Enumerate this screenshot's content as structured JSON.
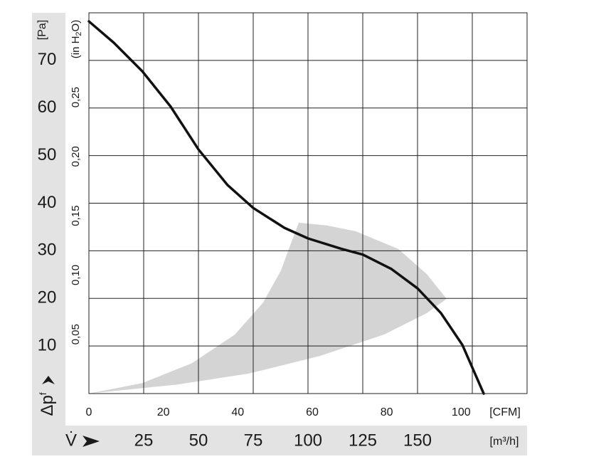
{
  "chart_data": {
    "type": "line",
    "x": [
      0,
      11.4,
      24.4,
      37.3,
      50,
      63.3,
      75,
      89.3,
      100,
      115.3,
      125,
      138,
      150,
      160.7,
      170.5,
      180.2
    ],
    "values": [
      78.2,
      73.7,
      67.7,
      60.3,
      51.3,
      43.8,
      39.0,
      34.8,
      32.6,
      30.4,
      29.2,
      26.2,
      22.1,
      16.9,
      10.2,
      0
    ],
    "color": "#111111",
    "region": {
      "color": "#d4d4d4",
      "x": [
        0,
        40.6,
        73,
        105.5,
        134.7,
        154.2,
        163.3,
        154.2,
        141.2,
        121.8,
        108.8,
        95.8,
        92.5,
        87.7,
        79.5,
        66.6,
        47.1,
        24.4
      ],
      "y": [
        0,
        1.9,
        4.2,
        7.9,
        12.4,
        16.9,
        19.9,
        25.1,
        30.4,
        34.1,
        35.3,
        35.9,
        31.9,
        25.9,
        19.1,
        12.4,
        6.4,
        2.2
      ]
    },
    "xlim": [
      0,
      200
    ],
    "xticks": [
      25,
      50,
      75,
      100,
      125,
      150
    ],
    "xgrid": [
      25,
      50,
      75,
      100,
      125,
      150,
      175
    ],
    "x_label": "V̇",
    "x_unit": "[m³/h]",
    "x2lim": [
      0,
      117.72
    ],
    "x2ticks": [
      0,
      20,
      40,
      60,
      80,
      100
    ],
    "x2_unit": "[CFM]",
    "ylim": [
      0,
      80
    ],
    "yticks": [
      10,
      20,
      30,
      40,
      50,
      60,
      70
    ],
    "y_unit": "[Pa]",
    "y_label": "Δp",
    "y_label_sub": "f",
    "y2lim": [
      0,
      0.3212
    ],
    "y2ticks": [
      {
        "value": 0.05,
        "label": "0,05"
      },
      {
        "value": 0.1,
        "label": "0,10"
      },
      {
        "value": 0.15,
        "label": "0,15"
      },
      {
        "value": 0.2,
        "label": "0,20"
      },
      {
        "value": 0.25,
        "label": "0,25"
      }
    ],
    "y2_label": [
      "(in H",
      "2",
      "O)"
    ],
    "grid": true
  }
}
